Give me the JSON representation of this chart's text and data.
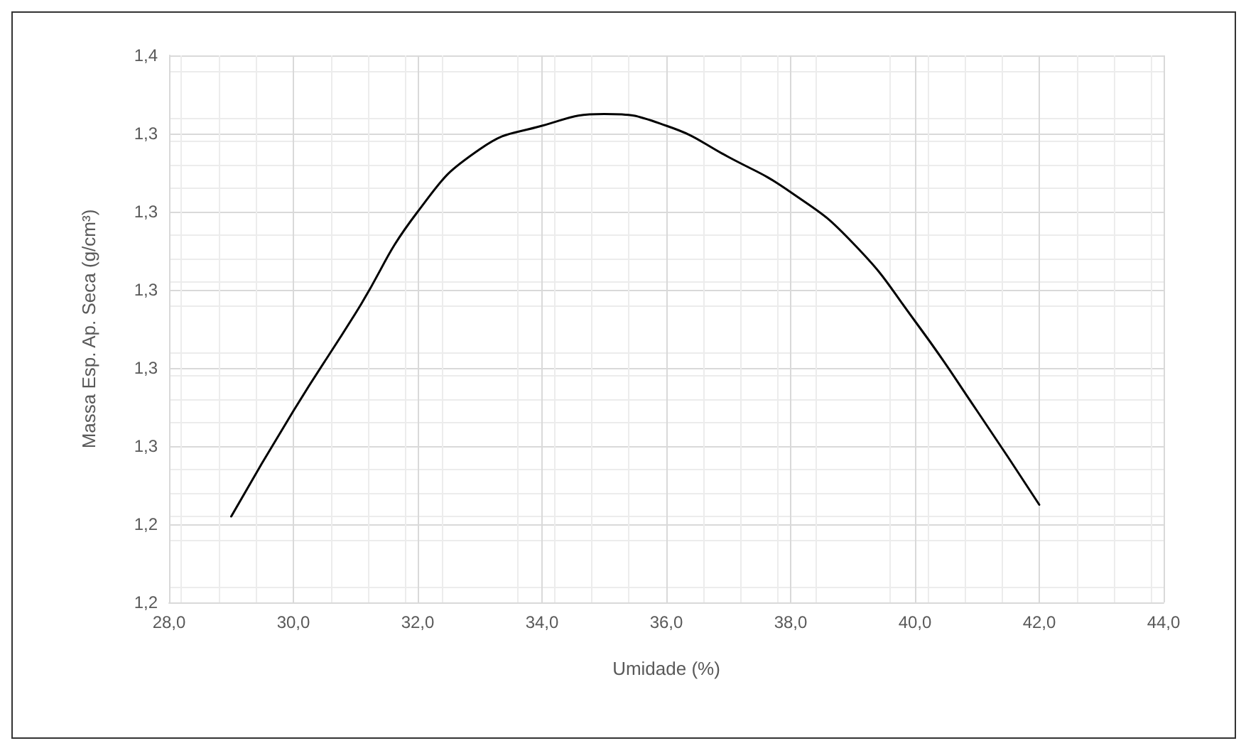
{
  "chart_data": {
    "type": "line",
    "xlabel": "Umidade (%)",
    "ylabel": "Massa Esp. Ap. Seca (g/cm³)",
    "x": [
      29,
      30,
      31,
      32,
      33,
      34,
      35,
      36,
      37,
      38,
      39,
      40,
      41,
      42
    ],
    "series": [
      {
        "color": "#000000",
        "values": [
          1.242,
          1.269,
          1.294,
          1.32,
          1.336,
          1.342,
          1.345,
          1.342,
          1.334,
          1.325,
          1.312,
          1.292,
          1.269,
          1.245
        ]
      }
    ],
    "xlim": [
      28,
      44
    ],
    "xticks": [
      {
        "value": 28,
        "label": "28,0"
      },
      {
        "value": 30,
        "label": "30,0"
      },
      {
        "value": 32,
        "label": "32,0"
      },
      {
        "value": 34,
        "label": "34,0"
      },
      {
        "value": 36,
        "label": "36,0"
      },
      {
        "value": 38,
        "label": "38,0"
      },
      {
        "value": 40,
        "label": "40,0"
      },
      {
        "value": 42,
        "label": "42,0"
      },
      {
        "value": 44,
        "label": "44,0"
      }
    ],
    "ylim": [
      1.22,
      1.36
    ],
    "yticks": [
      {
        "value": 1.22,
        "label": "1,2"
      },
      {
        "value": 1.24,
        "label": "1,2"
      },
      {
        "value": 1.26,
        "label": "1,3"
      },
      {
        "value": 1.28,
        "label": "1,3"
      },
      {
        "value": 1.3,
        "label": "1,3"
      },
      {
        "value": 1.32,
        "label": "1,3"
      },
      {
        "value": 1.34,
        "label": "1,3"
      },
      {
        "value": 1.36,
        "label": "1,4"
      }
    ],
    "grid": true,
    "marker": "none",
    "line_style": "solid"
  }
}
